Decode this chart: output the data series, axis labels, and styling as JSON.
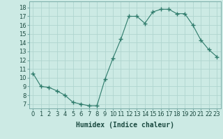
{
  "x": [
    0,
    1,
    2,
    3,
    4,
    5,
    6,
    7,
    8,
    9,
    10,
    11,
    12,
    13,
    14,
    15,
    16,
    17,
    18,
    19,
    20,
    21,
    22,
    23
  ],
  "y": [
    10.5,
    9.0,
    8.9,
    8.5,
    8.0,
    7.2,
    7.0,
    6.8,
    6.8,
    9.8,
    12.2,
    14.4,
    17.0,
    17.0,
    16.2,
    17.5,
    17.8,
    17.8,
    17.3,
    17.3,
    16.0,
    14.3,
    13.2,
    12.4
  ],
  "line_color": "#2d7a6a",
  "marker": "+",
  "marker_size": 4,
  "bg_color": "#cceae4",
  "grid_color": "#b0d5cf",
  "xlabel": "Humidex (Indice chaleur)",
  "ylabel_ticks": [
    7,
    8,
    9,
    10,
    11,
    12,
    13,
    14,
    15,
    16,
    17,
    18
  ],
  "ylim": [
    6.5,
    18.7
  ],
  "xlim": [
    -0.5,
    23.5
  ],
  "xlabel_fontsize": 7,
  "tick_fontsize": 6
}
